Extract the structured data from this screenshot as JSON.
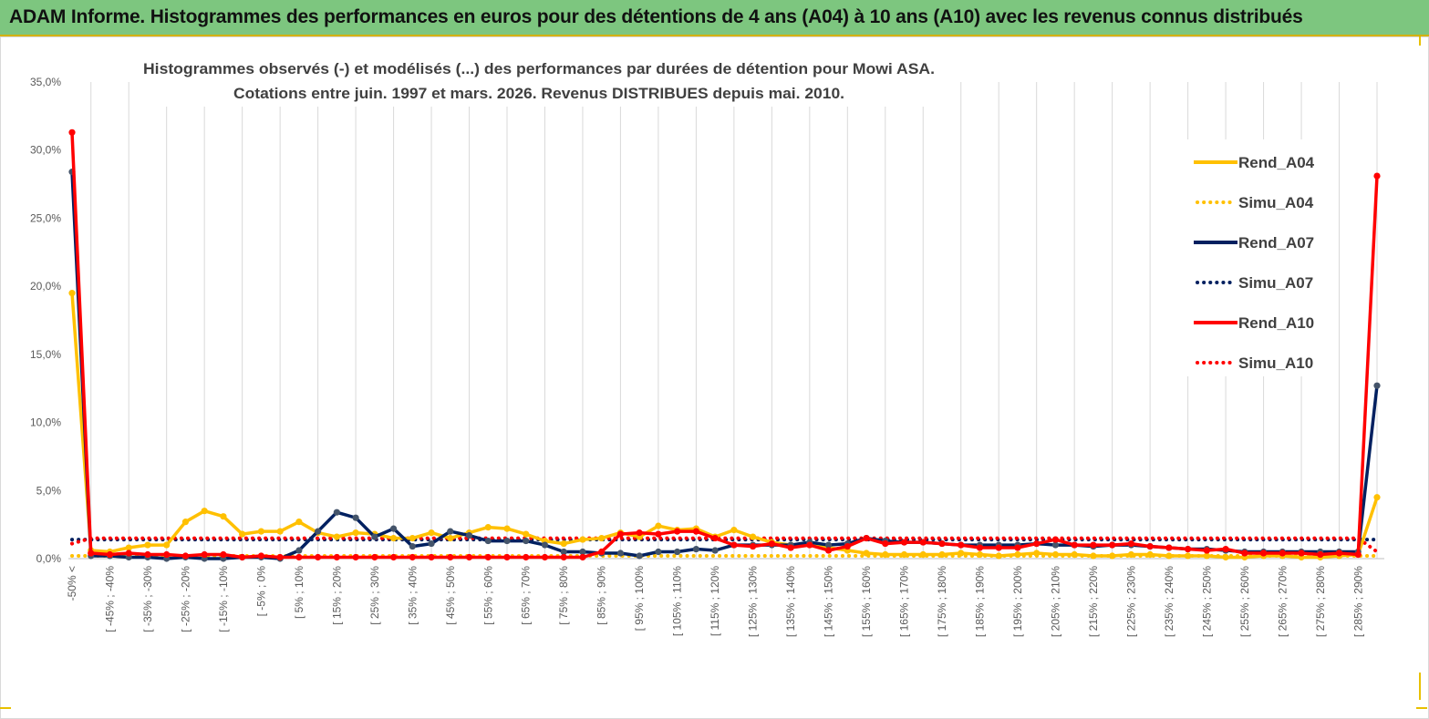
{
  "banner": {
    "title": "ADAM Informe. Histogrammes des performances en euros pour des détentions de 4 ans (A04) à 10 ans (A10) avec les revenus connus distribués"
  },
  "colors": {
    "banner_bg": "#7dc67f",
    "A04": "#ffc000",
    "A07": "#002060",
    "A10": "#ff0000",
    "marker_A07": "#44546a"
  },
  "chart_data": {
    "type": "line",
    "title": [
      "Histogrammes observés (-) et modélisés (...) des performances par durées de détention pour Mowi ASA.",
      "Cotations entre juin. 1997 et mars. 2026. Revenus DISTRIBUES depuis mai. 2010."
    ],
    "ylim": [
      0,
      35
    ],
    "yticks": [
      "0,0%",
      "5,0%",
      "10,0%",
      "15,0%",
      "20,0%",
      "25,0%",
      "30,0%",
      "35,0%"
    ],
    "grid": "vertical",
    "legend_position": "right",
    "category_count": 70,
    "tick_labels": [
      "-50% <",
      "[ -45% ; -40%",
      "[ -35% ; -30%",
      "[ -25% ; -20%",
      "[ -15% ; -10%",
      "[ -5% ; 0%",
      "[ 5% ; 10%",
      "[ 15% ; 20%",
      "[ 25% ; 30%",
      "[ 35% ; 40%",
      "[ 45% ; 50%",
      "[ 55% ; 60%",
      "[ 65% ; 70%",
      "[ 75% ; 80%",
      "[ 85% ; 90%",
      "[ 95% ; 100%",
      "[ 105% ; 110%",
      "[ 115% ; 120%",
      "[ 125% ; 130%",
      "[ 135% ; 140%",
      "[ 145% ; 150%",
      "[ 155% ; 160%",
      "[ 165% ; 170%",
      "[ 175% ; 180%",
      "[ 185% ; 190%",
      "[ 195% ; 200%",
      "[ 205% ; 210%",
      "[ 215% ; 220%",
      "[ 225% ; 230%",
      "[ 235% ; 240%",
      "[ 245% ; 250%",
      "[ 255% ; 260%",
      "[ 265% ; 270%",
      "[ 275% ; 280%",
      "[ 285% ; 290%"
    ],
    "series": [
      {
        "name": "Rend_A04",
        "style": "solid",
        "color": "#ffc000",
        "values": [
          19.5,
          0.6,
          0.5,
          0.8,
          1.0,
          1.0,
          2.7,
          3.5,
          3.1,
          1.8,
          2.0,
          2.0,
          2.7,
          1.9,
          1.6,
          1.9,
          1.8,
          1.5,
          1.5,
          1.9,
          1.5,
          1.9,
          2.3,
          2.2,
          1.8,
          1.3,
          1.1,
          1.4,
          1.5,
          1.9,
          1.6,
          2.4,
          2.1,
          2.2,
          1.6,
          2.1,
          1.6,
          1.2,
          1.0,
          1.0,
          0.8,
          0.6,
          0.4,
          0.3,
          0.3,
          0.3,
          0.3,
          0.4,
          0.3,
          0.2,
          0.3,
          0.4,
          0.3,
          0.3,
          0.2,
          0.2,
          0.3,
          0.3,
          0.2,
          0.2,
          0.2,
          0.1,
          0.1,
          0.2,
          0.2,
          0.1,
          0.1,
          0.2,
          0.3,
          4.5
        ]
      },
      {
        "name": "Simu_A04",
        "style": "dotted",
        "color": "#ffc000",
        "values": [
          0.2,
          0.2,
          0.2,
          0.2,
          0.2,
          0.2,
          0.2,
          0.2,
          0.2,
          0.2,
          0.2,
          0.2,
          0.2,
          0.2,
          0.2,
          0.2,
          0.2,
          0.2,
          0.2,
          0.2,
          0.2,
          0.2,
          0.2,
          0.2,
          0.2,
          0.2,
          0.2,
          0.2,
          0.2,
          0.2,
          0.2,
          0.2,
          0.2,
          0.2,
          0.2,
          0.2,
          0.2,
          0.2,
          0.2,
          0.2,
          0.2,
          0.2,
          0.2,
          0.2,
          0.2,
          0.2,
          0.2,
          0.2,
          0.2,
          0.2,
          0.2,
          0.2,
          0.2,
          0.2,
          0.2,
          0.2,
          0.2,
          0.2,
          0.2,
          0.2,
          0.2,
          0.2,
          0.2,
          0.2,
          0.2,
          0.2,
          0.2,
          0.2,
          0.2,
          0.2
        ]
      },
      {
        "name": "Rend_A07",
        "style": "solid",
        "color": "#002060",
        "values": [
          28.4,
          0.2,
          0.2,
          0.1,
          0.1,
          0.0,
          0.1,
          0.0,
          0.0,
          0.1,
          0.1,
          0.0,
          0.6,
          2.0,
          3.4,
          3.0,
          1.6,
          2.2,
          0.9,
          1.1,
          2.0,
          1.7,
          1.3,
          1.3,
          1.3,
          1.0,
          0.5,
          0.5,
          0.4,
          0.4,
          0.2,
          0.5,
          0.5,
          0.7,
          0.6,
          1.0,
          1.0,
          1.0,
          1.0,
          1.2,
          1.0,
          1.1,
          1.5,
          1.3,
          1.2,
          1.2,
          1.1,
          1.0,
          1.0,
          1.0,
          1.0,
          1.1,
          1.0,
          1.0,
          0.9,
          1.0,
          1.0,
          0.9,
          0.8,
          0.7,
          0.7,
          0.6,
          0.5,
          0.5,
          0.5,
          0.5,
          0.5,
          0.5,
          0.5,
          12.7
        ]
      },
      {
        "name": "Simu_A07",
        "style": "dotted",
        "color": "#002060",
        "values": [
          1.4,
          1.4,
          1.4,
          1.4,
          1.4,
          1.4,
          1.4,
          1.4,
          1.4,
          1.4,
          1.4,
          1.4,
          1.4,
          1.4,
          1.4,
          1.4,
          1.4,
          1.4,
          1.4,
          1.4,
          1.4,
          1.4,
          1.4,
          1.4,
          1.4,
          1.4,
          1.4,
          1.4,
          1.4,
          1.4,
          1.4,
          1.4,
          1.4,
          1.4,
          1.4,
          1.4,
          1.4,
          1.4,
          1.4,
          1.4,
          1.4,
          1.4,
          1.4,
          1.4,
          1.4,
          1.4,
          1.4,
          1.4,
          1.4,
          1.4,
          1.4,
          1.4,
          1.4,
          1.4,
          1.4,
          1.4,
          1.4,
          1.4,
          1.4,
          1.4,
          1.4,
          1.4,
          1.4,
          1.4,
          1.4,
          1.4,
          1.4,
          1.4,
          1.4,
          1.4
        ]
      },
      {
        "name": "Rend_A10",
        "style": "solid",
        "color": "#ff0000",
        "values": [
          31.3,
          0.4,
          0.3,
          0.4,
          0.3,
          0.3,
          0.2,
          0.3,
          0.3,
          0.1,
          0.2,
          0.1,
          0.1,
          0.1,
          0.1,
          0.1,
          0.1,
          0.1,
          0.1,
          0.1,
          0.1,
          0.1,
          0.1,
          0.1,
          0.1,
          0.1,
          0.1,
          0.1,
          0.5,
          1.8,
          1.9,
          1.8,
          2.0,
          2.0,
          1.5,
          1.0,
          0.9,
          1.1,
          0.8,
          1.0,
          0.6,
          0.9,
          1.5,
          1.1,
          1.2,
          1.2,
          1.1,
          1.0,
          0.8,
          0.8,
          0.8,
          1.1,
          1.4,
          1.0,
          1.0,
          1.0,
          1.1,
          0.9,
          0.8,
          0.7,
          0.6,
          0.7,
          0.4,
          0.4,
          0.4,
          0.4,
          0.3,
          0.4,
          0.3,
          28.1
        ]
      },
      {
        "name": "Simu_A10",
        "style": "dotted",
        "color": "#ff0000",
        "values": [
          1.1,
          1.5,
          1.5,
          1.5,
          1.5,
          1.5,
          1.5,
          1.5,
          1.5,
          1.5,
          1.5,
          1.5,
          1.5,
          1.5,
          1.5,
          1.5,
          1.5,
          1.5,
          1.5,
          1.5,
          1.5,
          1.5,
          1.5,
          1.5,
          1.5,
          1.5,
          1.5,
          1.5,
          1.5,
          1.5,
          1.5,
          1.5,
          1.5,
          1.5,
          1.5,
          1.5,
          1.5,
          1.5,
          1.5,
          1.5,
          1.5,
          1.5,
          1.5,
          1.5,
          1.5,
          1.5,
          1.5,
          1.5,
          1.5,
          1.5,
          1.5,
          1.5,
          1.5,
          1.5,
          1.5,
          1.5,
          1.5,
          1.5,
          1.5,
          1.5,
          1.5,
          1.5,
          1.5,
          1.5,
          1.5,
          1.5,
          1.5,
          1.5,
          1.5,
          0.5
        ]
      }
    ]
  }
}
